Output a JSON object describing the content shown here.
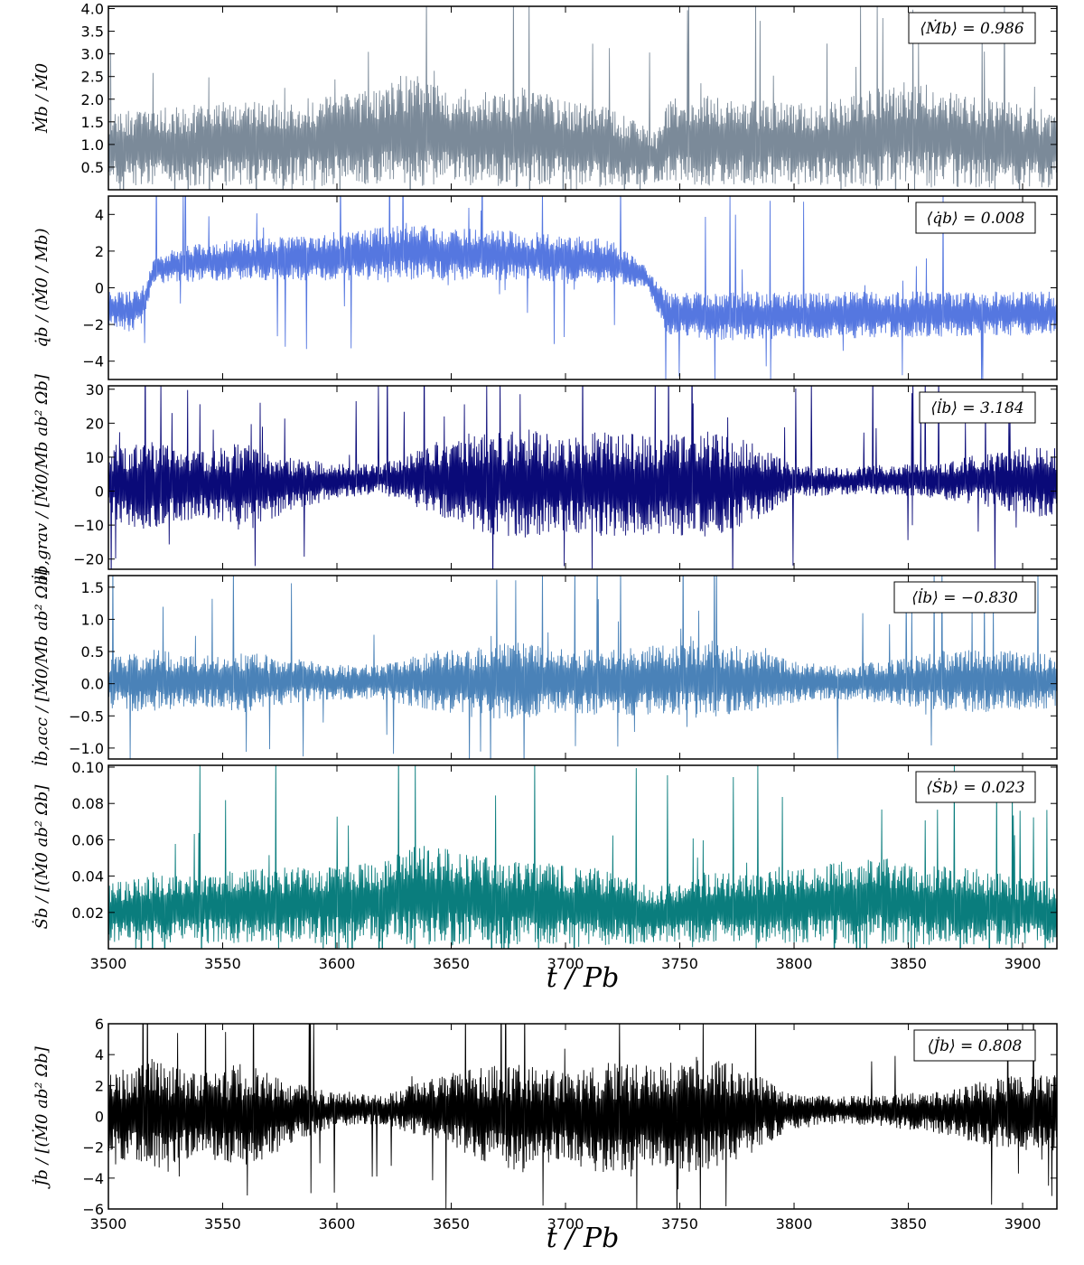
{
  "figure": {
    "background": "#ffffff",
    "xlabel": "t / Pb",
    "shared_xlim": [
      3500,
      3915
    ],
    "x_ticks": [
      3500,
      3550,
      3600,
      3650,
      3700,
      3750,
      3800,
      3850,
      3900
    ]
  },
  "chart_data": [
    {
      "type": "line",
      "id": "mdot",
      "ylabel": "Ṁb / Ṁ0",
      "ylim": [
        0,
        4.05
      ],
      "y_ticks": [
        0.5,
        1.0,
        1.5,
        2.0,
        2.5,
        3.0,
        3.5,
        4.0
      ],
      "y_tick_labels": [
        "0.5",
        "1.0",
        "1.5",
        "2.0",
        "2.5",
        "3.0",
        "3.5",
        "4.0"
      ],
      "color": "#7b8a99",
      "annotation": "⟨Ṁb⟩ = 0.986",
      "mean": 0.986,
      "series": [
        {
          "x": [
            3500,
            3520,
            3540,
            3560,
            3580,
            3600,
            3620,
            3630,
            3640,
            3650,
            3660,
            3670,
            3680,
            3700,
            3720,
            3735,
            3740,
            3745,
            3760,
            3780,
            3800,
            3820,
            3840,
            3850,
            3860,
            3880,
            3900,
            3915
          ],
          "y_low": [
            0.1,
            0.08,
            0.08,
            0.08,
            0.08,
            0.08,
            0.08,
            0.06,
            0.06,
            0.06,
            0.06,
            0.06,
            0.06,
            0.06,
            0.06,
            0.08,
            0.15,
            0.12,
            0.08,
            0.08,
            0.08,
            0.06,
            0.06,
            0.05,
            0.05,
            0.05,
            0.05,
            0.05
          ],
          "y_high": [
            1.7,
            1.8,
            1.9,
            2.0,
            2.0,
            2.1,
            2.3,
            2.6,
            2.5,
            2.3,
            2.2,
            2.2,
            2.3,
            2.0,
            1.8,
            1.4,
            1.3,
            2.0,
            2.1,
            2.0,
            1.9,
            2.0,
            2.3,
            2.4,
            2.3,
            2.1,
            1.9,
            1.7
          ]
        }
      ]
    },
    {
      "type": "line",
      "id": "qdot",
      "ylabel": "q̇b / (Ṁ0 / Mb)",
      "ylim": [
        -5,
        5
      ],
      "y_ticks": [
        -4,
        -2,
        0,
        2,
        4
      ],
      "y_tick_labels": [
        "−4",
        "−2",
        "0",
        "2",
        "4"
      ],
      "color": "#5577e0",
      "annotation": "⟨q̇b⟩ = 0.008",
      "mean": 0.008,
      "series": [
        {
          "x": [
            3500,
            3510,
            3515,
            3520,
            3530,
            3550,
            3580,
            3600,
            3630,
            3650,
            3680,
            3700,
            3720,
            3735,
            3745,
            3760,
            3800,
            3850,
            3900,
            3915
          ],
          "y_low": [
            -2.2,
            -2.4,
            -2.0,
            0.2,
            0.3,
            0.4,
            0.4,
            0.4,
            0.4,
            0.4,
            0.4,
            0.3,
            0.2,
            0.0,
            -2.6,
            -2.9,
            -2.8,
            -2.7,
            -2.6,
            -2.6
          ],
          "y_high": [
            -0.1,
            -0.2,
            0.1,
            1.6,
            2.2,
            2.6,
            2.8,
            2.9,
            3.6,
            3.3,
            3.1,
            2.9,
            2.6,
            1.2,
            -0.3,
            -0.2,
            -0.2,
            -0.2,
            -0.2,
            -0.2
          ]
        }
      ]
    },
    {
      "type": "line",
      "id": "ldot-grav",
      "ylabel": "l̇b,grav / [Ṁ0/Mb ab² Ωb]",
      "ylim": [
        -23,
        31
      ],
      "y_ticks": [
        -20,
        -10,
        0,
        10,
        20,
        30
      ],
      "y_tick_labels": [
        "−20",
        "−10",
        "0",
        "10",
        "20",
        "30"
      ],
      "color": "#0a0a78",
      "annotation": "⟨l̇b⟩ = 3.184",
      "mean": 3.184,
      "series": [
        {
          "x": [
            3500,
            3520,
            3540,
            3560,
            3580,
            3600,
            3620,
            3640,
            3660,
            3680,
            3700,
            3720,
            3740,
            3760,
            3780,
            3800,
            3820,
            3840,
            3860,
            3880,
            3900,
            3915
          ],
          "y_low": [
            -9,
            -12,
            -8,
            -12,
            -6,
            -2,
            -1,
            -6,
            -12,
            -14,
            -12,
            -14,
            -13,
            -14,
            -10,
            -2,
            -1,
            -1,
            -2,
            -4,
            -7,
            -9
          ],
          "y_high": [
            12,
            15,
            12,
            15,
            10,
            8,
            8,
            14,
            18,
            19,
            16,
            18,
            16,
            18,
            15,
            8,
            7,
            8,
            8,
            11,
            13,
            14
          ]
        }
      ]
    },
    {
      "type": "line",
      "id": "ldot-acc",
      "ylabel": "l̇b,acc / [Ṁ0/Mb ab² Ωb]",
      "ylim": [
        -1.17,
        1.68
      ],
      "y_ticks": [
        -1.0,
        -0.5,
        0.0,
        0.5,
        1.0,
        1.5
      ],
      "y_tick_labels": [
        "−1.0",
        "−0.5",
        "0.0",
        "0.5",
        "1.0",
        "1.5"
      ],
      "color": "#4a82b8",
      "annotation": "⟨l̇b⟩ = −0.830",
      "mean": -0.83,
      "series": [
        {
          "x": [
            3500,
            3520,
            3540,
            3560,
            3580,
            3600,
            3620,
            3640,
            3660,
            3680,
            3700,
            3720,
            3740,
            3760,
            3780,
            3800,
            3820,
            3840,
            3860,
            3880,
            3900,
            3915
          ],
          "y_low": [
            -0.4,
            -0.45,
            -0.35,
            -0.45,
            -0.3,
            -0.25,
            -0.25,
            -0.4,
            -0.55,
            -0.55,
            -0.45,
            -0.5,
            -0.5,
            -0.55,
            -0.45,
            -0.3,
            -0.25,
            -0.3,
            -0.4,
            -0.45,
            -0.4,
            -0.4
          ],
          "y_high": [
            0.4,
            0.55,
            0.45,
            0.5,
            0.4,
            0.3,
            0.3,
            0.5,
            0.6,
            0.65,
            0.55,
            0.55,
            0.6,
            0.7,
            0.55,
            0.35,
            0.3,
            0.35,
            0.5,
            0.55,
            0.5,
            0.45
          ]
        }
      ]
    },
    {
      "type": "line",
      "id": "sdot",
      "ylabel": "Ṡb / [(Ṁ0 ab² Ωb]",
      "ylim": [
        0,
        0.101
      ],
      "y_ticks": [
        0.02,
        0.04,
        0.06,
        0.08,
        0.1
      ],
      "y_tick_labels": [
        "0.02",
        "0.04",
        "0.06",
        "0.08",
        "0.10"
      ],
      "color": "#0a7d7d",
      "annotation": "⟨Ṡb⟩ = 0.023",
      "mean": 0.023,
      "series": [
        {
          "x": [
            3500,
            3520,
            3540,
            3560,
            3580,
            3600,
            3620,
            3630,
            3650,
            3670,
            3700,
            3720,
            3740,
            3760,
            3780,
            3800,
            3820,
            3840,
            3860,
            3880,
            3900,
            3915
          ],
          "y_low": [
            0.003,
            0.003,
            0.003,
            0.003,
            0.003,
            0.003,
            0.003,
            0.002,
            0.002,
            0.002,
            0.002,
            0.002,
            0.003,
            0.003,
            0.003,
            0.003,
            0.003,
            0.002,
            0.002,
            0.002,
            0.002,
            0.002
          ],
          "y_high": [
            0.036,
            0.04,
            0.042,
            0.044,
            0.045,
            0.046,
            0.048,
            0.058,
            0.055,
            0.05,
            0.046,
            0.044,
            0.034,
            0.042,
            0.042,
            0.044,
            0.048,
            0.05,
            0.046,
            0.044,
            0.04,
            0.036
          ]
        }
      ]
    },
    {
      "type": "line",
      "id": "jdot",
      "ylabel": "J̇b / [(Ṁ0 ab² Ωb]",
      "xlabel": "t / Pb",
      "ylim": [
        -6,
        6
      ],
      "y_ticks": [
        -6,
        -4,
        -2,
        0,
        2,
        4,
        6
      ],
      "y_tick_labels": [
        "−6",
        "−4",
        "−2",
        "0",
        "2",
        "4",
        "6"
      ],
      "color": "#000000",
      "annotation": "⟨J̇b⟩ = 0.808",
      "mean": 0.808,
      "series": [
        {
          "x": [
            3500,
            3520,
            3540,
            3560,
            3580,
            3600,
            3620,
            3640,
            3660,
            3680,
            3700,
            3720,
            3740,
            3760,
            3780,
            3800,
            3820,
            3840,
            3860,
            3880,
            3900,
            3915
          ],
          "y_low": [
            -2.5,
            -3.5,
            -2.5,
            -3.5,
            -1.8,
            -0.7,
            -0.5,
            -1.5,
            -2.8,
            -3.6,
            -3.0,
            -3.8,
            -3.2,
            -3.8,
            -2.5,
            -0.8,
            -0.5,
            -0.7,
            -1.0,
            -1.8,
            -2.2,
            -2.5
          ],
          "y_high": [
            2.8,
            3.6,
            2.8,
            3.5,
            2.2,
            1.5,
            1.4,
            2.4,
            3.2,
            3.4,
            3.0,
            3.5,
            3.4,
            4.0,
            3.0,
            1.5,
            1.3,
            1.4,
            1.6,
            2.2,
            2.8,
            3.0
          ]
        }
      ]
    }
  ]
}
